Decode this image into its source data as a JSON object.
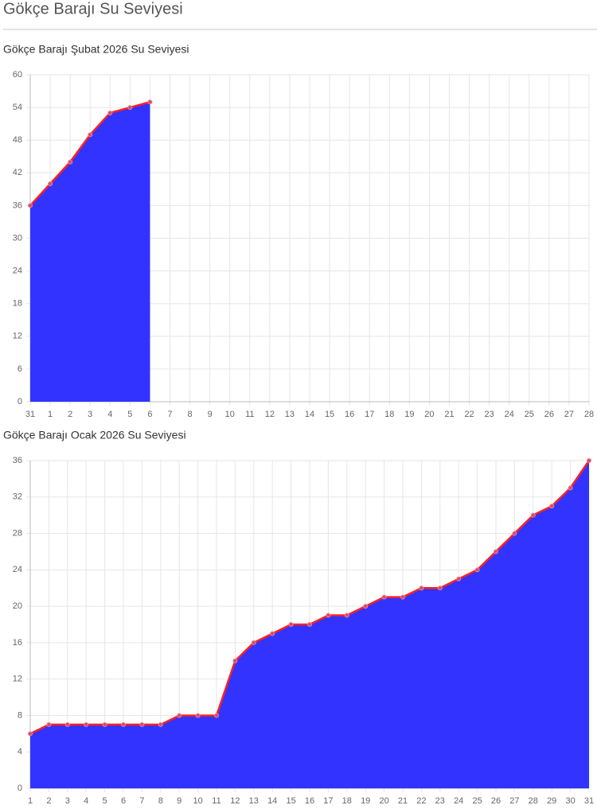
{
  "page_title": "Gökçe Barajı Su Seviyesi",
  "chart_data": [
    {
      "type": "area",
      "title": "Gökçe Barajı Şubat 2026 Su Seviyesi",
      "categories": [
        "31",
        "1",
        "2",
        "3",
        "4",
        "5",
        "6",
        "7",
        "8",
        "9",
        "10",
        "11",
        "12",
        "13",
        "14",
        "15",
        "16",
        "17",
        "18",
        "19",
        "20",
        "21",
        "22",
        "23",
        "24",
        "25",
        "26",
        "27",
        "28"
      ],
      "values": [
        36,
        40,
        44,
        49,
        53,
        54,
        55,
        null,
        null,
        null,
        null,
        null,
        null,
        null,
        null,
        null,
        null,
        null,
        null,
        null,
        null,
        null,
        null,
        null,
        null,
        null,
        null,
        null,
        null
      ],
      "color": "#3333ff",
      "line_color": "#ff2020",
      "ylim": [
        0,
        60
      ],
      "yticks": [
        0,
        6,
        12,
        18,
        24,
        30,
        36,
        42,
        48,
        54,
        60
      ],
      "grid": true
    },
    {
      "type": "area",
      "title": "Gökçe Barajı Ocak 2026 Su Seviyesi",
      "categories": [
        "1",
        "2",
        "3",
        "4",
        "5",
        "6",
        "7",
        "8",
        "9",
        "10",
        "11",
        "12",
        "13",
        "14",
        "15",
        "16",
        "17",
        "18",
        "19",
        "20",
        "21",
        "22",
        "23",
        "24",
        "25",
        "26",
        "27",
        "28",
        "29",
        "30",
        "31"
      ],
      "values": [
        6,
        7,
        7,
        7,
        7,
        7,
        7,
        7,
        8,
        8,
        8,
        14,
        16,
        17,
        18,
        18,
        19,
        19,
        20,
        21,
        21,
        22,
        22,
        23,
        24,
        26,
        28,
        30,
        31,
        33,
        36
      ],
      "color": "#3333ff",
      "line_color": "#ff2020",
      "ylim": [
        0,
        36
      ],
      "yticks": [
        0,
        4,
        8,
        12,
        16,
        20,
        24,
        28,
        32,
        36
      ],
      "grid": true
    }
  ]
}
